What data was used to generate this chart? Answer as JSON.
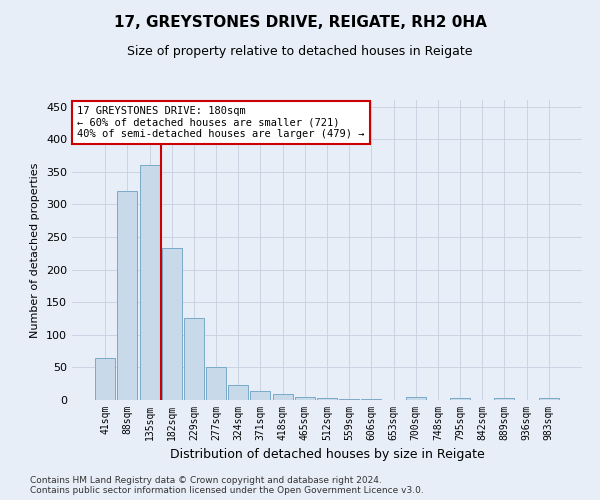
{
  "title_line1": "17, GREYSTONES DRIVE, REIGATE, RH2 0HA",
  "title_line2": "Size of property relative to detached houses in Reigate",
  "xlabel": "Distribution of detached houses by size in Reigate",
  "ylabel": "Number of detached properties",
  "footnote": "Contains HM Land Registry data © Crown copyright and database right 2024.\nContains public sector information licensed under the Open Government Licence v3.0.",
  "bar_labels": [
    "41sqm",
    "88sqm",
    "135sqm",
    "182sqm",
    "229sqm",
    "277sqm",
    "324sqm",
    "371sqm",
    "418sqm",
    "465sqm",
    "512sqm",
    "559sqm",
    "606sqm",
    "653sqm",
    "700sqm",
    "748sqm",
    "795sqm",
    "842sqm",
    "889sqm",
    "936sqm",
    "983sqm"
  ],
  "bar_values": [
    65,
    320,
    360,
    233,
    125,
    50,
    23,
    14,
    9,
    5,
    3,
    1,
    1,
    0,
    4,
    0,
    3,
    0,
    3,
    0,
    3
  ],
  "bar_color": "#c8daea",
  "bar_edge_color": "#7aaac8",
  "grid_color": "#c5cfe0",
  "background_color": "#e8eef8",
  "vline_color": "#cc0000",
  "vline_pos": 2.5,
  "annotation_text": "17 GREYSTONES DRIVE: 180sqm\n← 60% of detached houses are smaller (721)\n40% of semi-detached houses are larger (479) →",
  "annotation_box_facecolor": "#ffffff",
  "annotation_box_edgecolor": "#cc0000",
  "ylim": [
    0,
    460
  ],
  "yticks": [
    0,
    50,
    100,
    150,
    200,
    250,
    300,
    350,
    400,
    450
  ],
  "title1_fontsize": 11,
  "title2_fontsize": 9,
  "ylabel_fontsize": 8,
  "xlabel_fontsize": 9,
  "tick_fontsize": 7,
  "ytick_fontsize": 8,
  "annot_fontsize": 7.5,
  "footnote_fontsize": 6.5
}
